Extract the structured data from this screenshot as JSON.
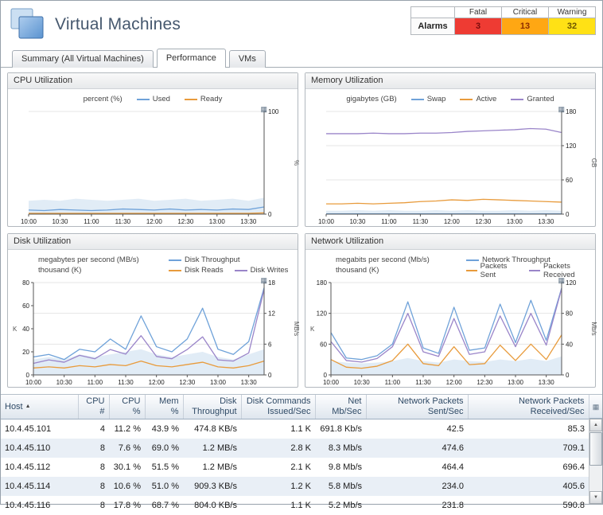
{
  "header": {
    "title": "Virtual Machines",
    "alarms": {
      "label": "Alarms",
      "columns": [
        "Fatal",
        "Critical",
        "Warning"
      ],
      "values": [
        "3",
        "13",
        "32"
      ],
      "colors": [
        "#ee3b33",
        "#ffa713",
        "#ffe115"
      ]
    }
  },
  "icons": {
    "options_grid": "▦",
    "sort_ascending": "▲",
    "scroll_up": "▲",
    "scroll_down": "▼"
  },
  "tabs": [
    {
      "label": "Summary (All Virtual Machines)",
      "active": false
    },
    {
      "label": "Performance",
      "active": true
    },
    {
      "label": "VMs",
      "active": false
    }
  ],
  "chart_data": [
    {
      "type": "line",
      "title": "CPU Utilization",
      "x_ticks": [
        "10:00",
        "10:30",
        "11:00",
        "11:30",
        "12:00",
        "12:30",
        "13:00",
        "13:30"
      ],
      "x_span_hours": 3.75,
      "right_axis": {
        "label": "%",
        "max": 100,
        "ticks": [
          0,
          100
        ]
      },
      "band": {
        "axis": "right",
        "color": "#dce9f5",
        "upper": [
          13,
          14,
          13,
          15,
          14,
          13,
          14,
          15,
          13,
          14,
          15,
          13,
          14,
          15,
          13,
          16
        ]
      },
      "series": [
        {
          "name": "Used",
          "color": "#6fa2d9",
          "axis": "right",
          "values": [
            4,
            3.5,
            4.5,
            4,
            3.5,
            4,
            5,
            4.5,
            4,
            5,
            4,
            4.5,
            4,
            5,
            4.5,
            7
          ]
        },
        {
          "name": "Ready",
          "color": "#e89b3c",
          "axis": "right",
          "values": [
            0.8,
            0.8,
            0.8,
            0.8,
            0.8,
            0.8,
            0.8,
            0.8,
            0.8,
            0.8,
            0.8,
            0.8,
            0.8,
            0.8,
            0.8,
            1.2
          ]
        }
      ],
      "legend_rows": [
        {
          "unit": "percent (%)",
          "series": [
            "Used",
            "Ready"
          ]
        }
      ]
    },
    {
      "type": "line",
      "title": "Memory Utilization",
      "x_ticks": [
        "10:00",
        "10:30",
        "11:00",
        "11:30",
        "12:00",
        "12:30",
        "13:00",
        "13:30"
      ],
      "x_span_hours": 3.75,
      "right_axis": {
        "label": "GB",
        "max": 180,
        "ticks": [
          0,
          60,
          120,
          180
        ]
      },
      "band": {
        "axis": "right",
        "color": "#dce9f5",
        "upper": [
          6,
          6,
          7,
          6,
          7,
          6,
          6,
          7,
          6,
          7,
          6,
          6,
          7,
          6,
          7,
          6
        ]
      },
      "series": [
        {
          "name": "Swap",
          "color": "#6fa2d9",
          "axis": "right",
          "values": [
            0.5,
            0.5,
            0.5,
            0.5,
            0.5,
            0.5,
            0.5,
            0.5,
            0.5,
            0.5,
            0.5,
            0.5,
            0.5,
            0.5,
            0.5,
            0.5
          ]
        },
        {
          "name": "Active",
          "color": "#e89b3c",
          "axis": "right",
          "values": [
            18,
            18,
            19,
            18,
            19,
            20,
            22,
            23,
            25,
            24,
            26,
            25,
            24,
            23,
            22,
            21
          ]
        },
        {
          "name": "Granted",
          "color": "#9a85c9",
          "axis": "right",
          "values": [
            141,
            141,
            141,
            142,
            141,
            141,
            142,
            142,
            143,
            145,
            146,
            147,
            148,
            150,
            149,
            143
          ]
        }
      ],
      "legend_rows": [
        {
          "unit": "gigabytes (GB)",
          "series": [
            "Swap",
            "Active",
            "Granted"
          ]
        }
      ]
    },
    {
      "type": "line",
      "title": "Disk Utilization",
      "x_ticks": [
        "10:00",
        "10:30",
        "11:00",
        "11:30",
        "12:00",
        "12:30",
        "13:00",
        "13:30"
      ],
      "x_span_hours": 3.75,
      "left_axis": {
        "label": "K",
        "max": 80,
        "ticks": [
          0,
          20,
          40,
          60,
          80
        ]
      },
      "right_axis": {
        "label": "MB/s",
        "max": 18,
        "ticks": [
          0,
          6,
          12,
          18
        ]
      },
      "band": {
        "axis": "right",
        "color": "#dce9f5",
        "upper": [
          3,
          3.5,
          3,
          4,
          3.5,
          4,
          4.5,
          5,
          4,
          3.5,
          4,
          4.5,
          3.5,
          3,
          4,
          5
        ]
      },
      "series": [
        {
          "name": "Disk Throughput",
          "color": "#6fa2d9",
          "axis": "right",
          "values": [
            3.5,
            4,
            3,
            5,
            4.5,
            7,
            5,
            11.5,
            5.5,
            4.5,
            7,
            13,
            5,
            4,
            6.5,
            17
          ]
        },
        {
          "name": "Disk Reads",
          "color": "#e89b3c",
          "axis": "left",
          "values": [
            6,
            7,
            6,
            8,
            7,
            9,
            8,
            12,
            8,
            7,
            9,
            11,
            7,
            6,
            8,
            12
          ]
        },
        {
          "name": "Disk Writes",
          "color": "#9a85c9",
          "axis": "left",
          "values": [
            10,
            13,
            11,
            17,
            14,
            22,
            18,
            34,
            16,
            14,
            22,
            33,
            13,
            12,
            19,
            74
          ]
        }
      ],
      "legend_rows": [
        {
          "unit": "megabytes per second (MB/s)",
          "series": [
            "Disk Throughput"
          ]
        },
        {
          "unit": "thousand (K)",
          "series": [
            "Disk Reads",
            "Disk Writes"
          ]
        }
      ]
    },
    {
      "type": "line",
      "title": "Network Utilization",
      "x_ticks": [
        "10:00",
        "10:30",
        "11:00",
        "11:30",
        "12:00",
        "12:30",
        "13:00",
        "13:30"
      ],
      "x_span_hours": 3.75,
      "left_axis": {
        "label": "K",
        "max": 180,
        "ticks": [
          0,
          60,
          120,
          180
        ]
      },
      "right_axis": {
        "label": "Mb/s",
        "max": 120,
        "ticks": [
          0,
          40,
          80,
          120
        ]
      },
      "band": {
        "axis": "right",
        "color": "#dce9f5",
        "upper": [
          18,
          16,
          15,
          16,
          18,
          22,
          18,
          16,
          20,
          18,
          17,
          20,
          18,
          21,
          18,
          24
        ]
      },
      "series": [
        {
          "name": "Network Throughput",
          "color": "#6fa2d9",
          "axis": "right",
          "values": [
            55,
            22,
            20,
            25,
            40,
            95,
            35,
            28,
            88,
            32,
            35,
            92,
            42,
            97,
            45,
            113
          ]
        },
        {
          "name": "Packets Sent",
          "color": "#e89b3c",
          "axis": "left",
          "values": [
            30,
            15,
            13,
            17,
            28,
            60,
            22,
            18,
            55,
            20,
            22,
            58,
            28,
            60,
            30,
            78
          ]
        },
        {
          "name": "Packets Received",
          "color": "#9a85c9",
          "axis": "left",
          "values": [
            65,
            28,
            25,
            32,
            55,
            120,
            45,
            36,
            110,
            40,
            45,
            115,
            55,
            120,
            58,
            168
          ]
        }
      ],
      "legend_rows": [
        {
          "unit": "megabits per second (Mb/s)",
          "series": [
            "Network Throughput"
          ]
        },
        {
          "unit": "thousand (K)",
          "series": [
            "Packets Sent",
            "Packets Received"
          ]
        }
      ]
    }
  ],
  "table": {
    "columns": [
      {
        "label": "Host",
        "align": "left",
        "sort": "asc",
        "width": 97
      },
      {
        "label": "CPU #",
        "align": "right",
        "width": 39
      },
      {
        "label": "CPU %",
        "align": "right",
        "width": 45
      },
      {
        "label": "Mem %",
        "align": "right",
        "width": 48
      },
      {
        "label": "Disk Throughput",
        "align": "right",
        "width": 73
      },
      {
        "label": "Disk Commands Issued/Sec",
        "align": "right",
        "width": 93
      },
      {
        "label": "Net Mb/Sec",
        "align": "right",
        "width": 64
      },
      {
        "label": "Network Packets Sent/Sec",
        "align": "right",
        "width": 128
      },
      {
        "label": "Network Packets Received/Sec",
        "align": "right",
        "width": 152
      }
    ],
    "rows": [
      [
        "10.4.45.101",
        "4",
        "11.2 %",
        "43.9 %",
        "474.8 KB/s",
        "1.1 K",
        "691.8 Kb/s",
        "42.5",
        "85.3"
      ],
      [
        "10.4.45.110",
        "8",
        "7.6 %",
        "69.0 %",
        "1.2 MB/s",
        "2.8 K",
        "8.3 Mb/s",
        "474.6",
        "709.1"
      ],
      [
        "10.4.45.112",
        "8",
        "30.1 %",
        "51.5 %",
        "1.2 MB/s",
        "2.1 K",
        "9.8 Mb/s",
        "464.4",
        "696.4"
      ],
      [
        "10.4.45.114",
        "8",
        "10.6 %",
        "51.0 %",
        "909.3 KB/s",
        "1.2 K",
        "5.8 Mb/s",
        "234.0",
        "405.6"
      ],
      [
        "10.4.45.116",
        "8",
        "17.8 %",
        "68.7 %",
        "804.0 KB/s",
        "1.1 K",
        "5.2 Mb/s",
        "231.8",
        "590.8"
      ]
    ]
  }
}
